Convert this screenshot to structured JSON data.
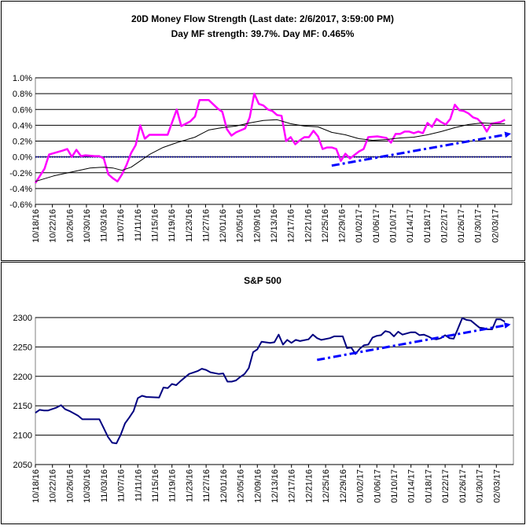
{
  "chart_data": [
    {
      "type": "line",
      "title": "20D Money Flow Strength (Last date: 2/6/2017, 3:59:00 PM)",
      "subtitle": "Day MF strength: 39.7%. Day MF: 0.465%",
      "ylim": [
        -0.6,
        1.0
      ],
      "yticks": [
        -0.6,
        -0.4,
        -0.2,
        0.0,
        0.2,
        0.4,
        0.6,
        0.8,
        1.0
      ],
      "ytick_labels": [
        "-0.6%",
        "-0.4%",
        "-0.2%",
        "0.0%",
        "0.2%",
        "0.4%",
        "0.6%",
        "0.8%",
        "1.0%"
      ],
      "x_tick_labels": [
        "10/18/16",
        "10/22/16",
        "10/26/16",
        "10/30/16",
        "11/03/16",
        "11/07/16",
        "11/11/16",
        "11/15/16",
        "11/19/16",
        "11/23/16",
        "11/27/16",
        "12/01/16",
        "12/05/16",
        "12/09/16",
        "12/13/16",
        "12/17/16",
        "12/21/16",
        "12/25/16",
        "12/29/16",
        "01/02/17",
        "01/06/17",
        "01/10/17",
        "01/14/17",
        "01/18/17",
        "01/22/17",
        "01/26/17",
        "01/30/17",
        "02/03/17"
      ],
      "grid": true,
      "colors": {
        "strength": "#ff00ff",
        "average": "#000000",
        "zero_line": "#000099",
        "trend": "#0000ff"
      },
      "series": [
        {
          "role": "strength",
          "values": [
            [
              0,
              -0.33
            ],
            [
              2,
              -0.15
            ],
            [
              3,
              0.03
            ],
            [
              6,
              0.08
            ],
            [
              7,
              0.1
            ],
            [
              8,
              0.0
            ],
            [
              9,
              0.09
            ],
            [
              10,
              0.01
            ],
            [
              11,
              0.02
            ],
            [
              13,
              0.01
            ],
            [
              14,
              0.01
            ],
            [
              15,
              -0.02
            ],
            [
              16,
              -0.22
            ],
            [
              17,
              -0.27
            ],
            [
              18,
              -0.31
            ],
            [
              19,
              -0.22
            ],
            [
              20,
              -0.1
            ],
            [
              21,
              0.05
            ],
            [
              22,
              0.15
            ],
            [
              23,
              0.4
            ],
            [
              24,
              0.23
            ],
            [
              25,
              0.28
            ],
            [
              29,
              0.28
            ],
            [
              30,
              0.44
            ],
            [
              31,
              0.6
            ],
            [
              32,
              0.39
            ],
            [
              33,
              0.42
            ],
            [
              34,
              0.45
            ],
            [
              35,
              0.51
            ],
            [
              36,
              0.72
            ],
            [
              38,
              0.72
            ],
            [
              40,
              0.61
            ],
            [
              41,
              0.57
            ],
            [
              42,
              0.35
            ],
            [
              43,
              0.27
            ],
            [
              44,
              0.31
            ],
            [
              46,
              0.36
            ],
            [
              47,
              0.5
            ],
            [
              48,
              0.8
            ],
            [
              49,
              0.67
            ],
            [
              50,
              0.65
            ],
            [
              51,
              0.6
            ],
            [
              52,
              0.58
            ],
            [
              53,
              0.53
            ],
            [
              54,
              0.52
            ],
            [
              55,
              0.2
            ],
            [
              56,
              0.25
            ],
            [
              57,
              0.16
            ],
            [
              58,
              0.21
            ],
            [
              59,
              0.25
            ],
            [
              60,
              0.25
            ],
            [
              61,
              0.33
            ],
            [
              62,
              0.26
            ],
            [
              63,
              0.1
            ],
            [
              64,
              0.12
            ],
            [
              65,
              0.12
            ],
            [
              66,
              0.1
            ],
            [
              67,
              -0.05
            ],
            [
              68,
              0.04
            ],
            [
              69,
              -0.02
            ],
            [
              71,
              0.07
            ],
            [
              72,
              0.1
            ],
            [
              73,
              0.25
            ],
            [
              75,
              0.26
            ],
            [
              77,
              0.24
            ],
            [
              78,
              0.18
            ],
            [
              79,
              0.29
            ],
            [
              80,
              0.29
            ],
            [
              81,
              0.32
            ],
            [
              82,
              0.32
            ],
            [
              83,
              0.3
            ],
            [
              84,
              0.32
            ],
            [
              85,
              0.3
            ],
            [
              86,
              0.43
            ],
            [
              87,
              0.38
            ],
            [
              88,
              0.48
            ],
            [
              89,
              0.44
            ],
            [
              90,
              0.41
            ],
            [
              91,
              0.48
            ],
            [
              92,
              0.66
            ],
            [
              93,
              0.59
            ],
            [
              94,
              0.58
            ],
            [
              95,
              0.55
            ],
            [
              96,
              0.5
            ],
            [
              97,
              0.48
            ],
            [
              98,
              0.42
            ],
            [
              99,
              0.32
            ],
            [
              100,
              0.42
            ],
            [
              101,
              0.43
            ],
            [
              102,
              0.44
            ],
            [
              103,
              0.47
            ]
          ]
        },
        {
          "role": "average",
          "values": [
            [
              0,
              -0.31
            ],
            [
              4,
              -0.24
            ],
            [
              8,
              -0.19
            ],
            [
              12,
              -0.14
            ],
            [
              15,
              -0.13
            ],
            [
              17,
              -0.14
            ],
            [
              19,
              -0.17
            ],
            [
              21,
              -0.13
            ],
            [
              23,
              -0.05
            ],
            [
              25,
              0.03
            ],
            [
              28,
              0.12
            ],
            [
              31,
              0.18
            ],
            [
              35,
              0.25
            ],
            [
              38,
              0.34
            ],
            [
              41,
              0.37
            ],
            [
              44,
              0.39
            ],
            [
              47,
              0.43
            ],
            [
              50,
              0.46
            ],
            [
              53,
              0.47
            ],
            [
              56,
              0.42
            ],
            [
              59,
              0.39
            ],
            [
              62,
              0.38
            ],
            [
              65,
              0.31
            ],
            [
              68,
              0.28
            ],
            [
              71,
              0.23
            ],
            [
              74,
              0.21
            ],
            [
              77,
              0.22
            ],
            [
              80,
              0.24
            ],
            [
              83,
              0.25
            ],
            [
              86,
              0.28
            ],
            [
              89,
              0.32
            ],
            [
              92,
              0.37
            ],
            [
              95,
              0.41
            ],
            [
              98,
              0.43
            ],
            [
              101,
              0.42
            ],
            [
              103,
              0.42
            ]
          ]
        },
        {
          "role": "trend",
          "values": [
            [
              65,
              -0.11
            ],
            [
              104,
              0.29
            ]
          ]
        }
      ]
    },
    {
      "type": "line",
      "title": "S&P 500",
      "ylim": [
        2050,
        2300
      ],
      "yticks": [
        2050,
        2100,
        2150,
        2200,
        2250,
        2300
      ],
      "ytick_labels": [
        "2050",
        "2100",
        "2150",
        "2200",
        "2250",
        "2300"
      ],
      "x_tick_labels": [
        "10/18/16",
        "10/22/16",
        "10/26/16",
        "10/30/16",
        "11/03/16",
        "11/07/16",
        "11/11/16",
        "11/15/16",
        "11/19/16",
        "11/23/16",
        "11/27/16",
        "12/01/16",
        "12/05/16",
        "12/09/16",
        "12/13/16",
        "12/17/16",
        "12/21/16",
        "12/25/16",
        "12/29/16",
        "01/02/17",
        "01/06/17",
        "01/10/17",
        "01/14/17",
        "01/18/17",
        "01/22/17",
        "01/26/17",
        "01/30/17",
        "02/03/17"
      ],
      "grid": true,
      "colors": {
        "price": "#000080",
        "trend": "#0000ff"
      },
      "series": [
        {
          "role": "price",
          "values": [
            [
              0,
              2138
            ],
            [
              1,
              2143
            ],
            [
              2,
              2142
            ],
            [
              3,
              2142
            ],
            [
              5,
              2147
            ],
            [
              6,
              2151
            ],
            [
              7,
              2144
            ],
            [
              8,
              2141
            ],
            [
              9,
              2137
            ],
            [
              10,
              2133
            ],
            [
              11,
              2127
            ],
            [
              14,
              2127
            ],
            [
              15,
              2127
            ],
            [
              16,
              2112
            ],
            [
              17,
              2097
            ],
            [
              18,
              2087
            ],
            [
              19,
              2086
            ],
            [
              20,
              2101
            ],
            [
              21,
              2120
            ],
            [
              22,
              2130
            ],
            [
              23,
              2141
            ],
            [
              24,
              2163
            ],
            [
              25,
              2167
            ],
            [
              26,
              2165
            ],
            [
              29,
              2164
            ],
            [
              30,
              2181
            ],
            [
              31,
              2180
            ],
            [
              32,
              2187
            ],
            [
              33,
              2185
            ],
            [
              34,
              2192
            ],
            [
              35,
              2198
            ],
            [
              36,
              2204
            ],
            [
              38,
              2209
            ],
            [
              39,
              2213
            ],
            [
              40,
              2211
            ],
            [
              41,
              2207
            ],
            [
              43,
              2204
            ],
            [
              44,
              2205
            ],
            [
              45,
              2191
            ],
            [
              46,
              2191
            ],
            [
              47,
              2193
            ],
            [
              48,
              2199
            ],
            [
              49,
              2204
            ],
            [
              50,
              2214
            ],
            [
              51,
              2241
            ],
            [
              52,
              2246
            ],
            [
              53,
              2259
            ],
            [
              55,
              2257
            ],
            [
              56,
              2258
            ],
            [
              57,
              2271
            ],
            [
              58,
              2254
            ],
            [
              59,
              2262
            ],
            [
              60,
              2257
            ],
            [
              61,
              2262
            ],
            [
              62,
              2260
            ],
            [
              64,
              2263
            ],
            [
              65,
              2271
            ],
            [
              66,
              2265
            ],
            [
              67,
              2262
            ],
            [
              69,
              2265
            ],
            [
              70,
              2268
            ],
            [
              72,
              2268
            ],
            [
              73,
              2248
            ],
            [
              74,
              2249
            ],
            [
              75,
              2238
            ],
            [
              76,
              2247
            ],
            [
              77,
              2253
            ],
            [
              78,
              2254
            ],
            [
              79,
              2266
            ],
            [
              80,
              2269
            ],
            [
              81,
              2270
            ],
            [
              82,
              2277
            ],
            [
              83,
              2275
            ],
            [
              84,
              2268
            ],
            [
              85,
              2276
            ],
            [
              86,
              2271
            ],
            [
              87,
              2273
            ],
            [
              88,
              2275
            ],
            [
              89,
              2275
            ],
            [
              90,
              2270
            ],
            [
              91,
              2271
            ],
            [
              92,
              2268
            ],
            [
              93,
              2264
            ],
            [
              94,
              2263
            ],
            [
              95,
              2265
            ],
            [
              96,
              2270
            ],
            [
              97,
              2265
            ],
            [
              98,
              2264
            ],
            [
              99,
              2281
            ],
            [
              100,
              2299
            ],
            [
              101,
              2296
            ],
            [
              102,
              2295
            ],
            [
              103,
              2289
            ],
            [
              104,
              2283
            ],
            [
              105,
              2282
            ],
            [
              106,
              2280
            ],
            [
              107,
              2280
            ],
            [
              108,
              2297
            ],
            [
              109,
              2297
            ],
            [
              110,
              2293
            ]
          ]
        },
        {
          "role": "trend",
          "values": [
            [
              66,
              2228
            ],
            [
              111,
              2288
            ]
          ]
        }
      ]
    }
  ]
}
